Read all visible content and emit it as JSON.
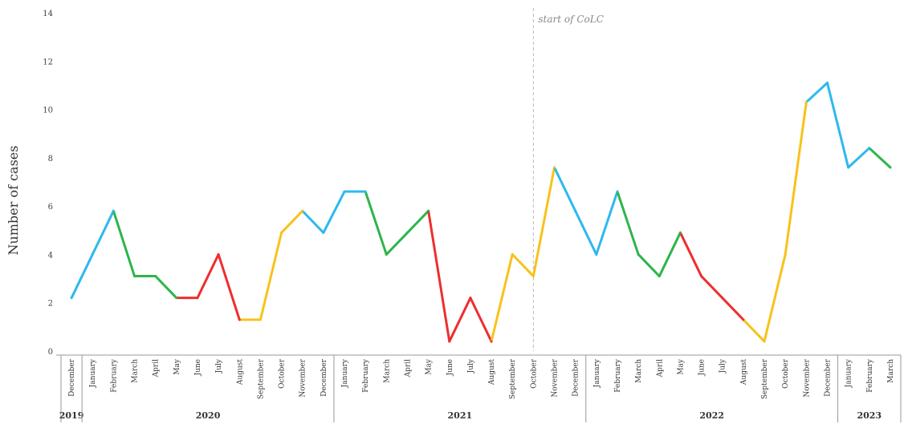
{
  "chart_data": {
    "type": "line",
    "ylabel": "Number of cases",
    "ylim": [
      0,
      14
    ],
    "yticks": [
      0,
      2,
      4,
      6,
      8,
      10,
      12,
      14
    ],
    "grid": false,
    "legend": "none",
    "annotation": {
      "text": "start of CoLC",
      "at_index": 22
    },
    "x": [
      "December",
      "January",
      "February",
      "March",
      "April",
      "May",
      "June",
      "July",
      "August",
      "September",
      "October",
      "November",
      "December",
      "January",
      "February",
      "March",
      "April",
      "May",
      "June",
      "July",
      "August",
      "September",
      "October",
      "November",
      "December",
      "January",
      "February",
      "March",
      "April",
      "May",
      "June",
      "July",
      "August",
      "September",
      "October",
      "November",
      "December",
      "January",
      "February",
      "March"
    ],
    "values": [
      2.2,
      4.0,
      5.8,
      3.1,
      3.1,
      2.2,
      2.2,
      4.0,
      1.3,
      1.3,
      4.9,
      5.8,
      4.9,
      6.6,
      6.6,
      4.0,
      4.9,
      5.8,
      0.4,
      2.2,
      0.4,
      4.0,
      3.1,
      7.6,
      5.8,
      4.0,
      6.6,
      4.0,
      3.1,
      4.9,
      3.1,
      2.2,
      1.3,
      0.4,
      4.0,
      10.3,
      11.1,
      7.6,
      8.4,
      7.6
    ],
    "season_colors": {
      "winter": "#2eb8f0",
      "spring": "#2db54a",
      "summer": "#ee2e2e",
      "autumn": "#f8c21c"
    },
    "years": [
      {
        "label": "2019",
        "start": 0,
        "end": 0
      },
      {
        "label": "2020",
        "start": 1,
        "end": 12
      },
      {
        "label": "2021",
        "start": 13,
        "end": 24
      },
      {
        "label": "2022",
        "start": 25,
        "end": 36
      },
      {
        "label": "2023",
        "start": 37,
        "end": 39
      }
    ]
  }
}
